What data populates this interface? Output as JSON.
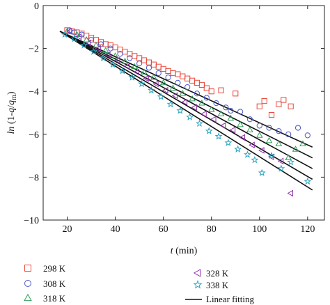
{
  "chart_data": {
    "type": "scatter",
    "title": "",
    "xlabel": {
      "italic": "t",
      "rest": " (min)"
    },
    "ylabel": {
      "italic": "ln",
      "pre": " (1-",
      "q1": "q",
      "mid": "/",
      "q2": "q",
      "sub": "m",
      "post": ")"
    },
    "xlim": [
      10,
      127
    ],
    "ylim": [
      -10,
      0
    ],
    "xticks": [
      20,
      40,
      60,
      80,
      100,
      120
    ],
    "yticks": [
      0,
      -2,
      -4,
      -6,
      -8,
      -10
    ],
    "grid": false,
    "legend_position": "bottom",
    "fit_label": "Linear fitting",
    "series": [
      {
        "name": "298 K",
        "marker": "square",
        "color": "#e8483c",
        "fit": {
          "x0": 17,
          "y0": -1.2,
          "x1": 122,
          "y1": -6.6
        },
        "points": [
          [
            20,
            -1.15
          ],
          [
            22,
            -1.2
          ],
          [
            24,
            -1.25
          ],
          [
            26,
            -1.3
          ],
          [
            28,
            -1.4
          ],
          [
            30,
            -1.5
          ],
          [
            32,
            -1.6
          ],
          [
            34,
            -1.7
          ],
          [
            36,
            -1.8
          ],
          [
            38,
            -1.85
          ],
          [
            40,
            -1.95
          ],
          [
            42,
            -2.05
          ],
          [
            44,
            -2.15
          ],
          [
            46,
            -2.25
          ],
          [
            48,
            -2.35
          ],
          [
            50,
            -2.45
          ],
          [
            52,
            -2.55
          ],
          [
            54,
            -2.65
          ],
          [
            56,
            -2.75
          ],
          [
            58,
            -2.85
          ],
          [
            60,
            -2.95
          ],
          [
            62,
            -3.05
          ],
          [
            64,
            -3.15
          ],
          [
            66,
            -3.2
          ],
          [
            68,
            -3.3
          ],
          [
            70,
            -3.4
          ],
          [
            72,
            -3.5
          ],
          [
            74,
            -3.6
          ],
          [
            76,
            -3.7
          ],
          [
            78,
            -3.85
          ],
          [
            80,
            -4.0
          ],
          [
            84,
            -3.95
          ],
          [
            90,
            -4.1
          ],
          [
            100,
            -4.7
          ],
          [
            102,
            -4.45
          ],
          [
            105,
            -5.1
          ],
          [
            108,
            -4.6
          ],
          [
            110,
            -4.4
          ],
          [
            113,
            -4.7
          ]
        ]
      },
      {
        "name": "308 K",
        "marker": "circle",
        "color": "#4a57c8",
        "fit": {
          "x0": 17,
          "y0": -1.2,
          "x1": 122,
          "y1": -7.1
        },
        "points": [
          [
            21,
            -1.15
          ],
          [
            23,
            -1.25
          ],
          [
            26,
            -1.35
          ],
          [
            30,
            -1.6
          ],
          [
            34,
            -1.8
          ],
          [
            38,
            -2.0
          ],
          [
            42,
            -2.25
          ],
          [
            46,
            -2.45
          ],
          [
            50,
            -2.7
          ],
          [
            54,
            -2.9
          ],
          [
            58,
            -3.15
          ],
          [
            62,
            -3.35
          ],
          [
            66,
            -3.6
          ],
          [
            70,
            -3.8
          ],
          [
            74,
            -4.1
          ],
          [
            78,
            -4.3
          ],
          [
            82,
            -4.55
          ],
          [
            86,
            -4.75
          ],
          [
            88,
            -4.9
          ],
          [
            92,
            -4.95
          ],
          [
            96,
            -5.3
          ],
          [
            100,
            -5.6
          ],
          [
            104,
            -5.7
          ],
          [
            108,
            -5.85
          ],
          [
            112,
            -6.0
          ],
          [
            116,
            -5.7
          ],
          [
            120,
            -6.05
          ]
        ]
      },
      {
        "name": "318 K",
        "marker": "triangle-up",
        "color": "#2e9e5b",
        "fit": {
          "x0": 17,
          "y0": -1.2,
          "x1": 122,
          "y1": -7.6
        },
        "points": [
          [
            20,
            -1.2
          ],
          [
            24,
            -1.35
          ],
          [
            28,
            -1.6
          ],
          [
            32,
            -1.85
          ],
          [
            36,
            -2.1
          ],
          [
            40,
            -2.35
          ],
          [
            44,
            -2.6
          ],
          [
            48,
            -2.85
          ],
          [
            52,
            -3.1
          ],
          [
            56,
            -3.35
          ],
          [
            60,
            -3.6
          ],
          [
            64,
            -3.85
          ],
          [
            68,
            -4.1
          ],
          [
            72,
            -4.35
          ],
          [
            76,
            -4.55
          ],
          [
            80,
            -4.85
          ],
          [
            84,
            -5.05
          ],
          [
            88,
            -5.25
          ],
          [
            92,
            -5.55
          ],
          [
            96,
            -5.8
          ],
          [
            100,
            -6.05
          ],
          [
            104,
            -6.3
          ],
          [
            108,
            -6.45
          ],
          [
            112,
            -7.1
          ],
          [
            115,
            -6.7
          ],
          [
            118,
            -6.45
          ]
        ]
      },
      {
        "name": "328 K",
        "marker": "triangle-left",
        "color": "#8e2fa8",
        "fit": {
          "x0": 17,
          "y0": -1.2,
          "x1": 122,
          "y1": -8.1
        },
        "points": [
          [
            21,
            -1.2
          ],
          [
            25,
            -1.45
          ],
          [
            29,
            -1.75
          ],
          [
            33,
            -2.0
          ],
          [
            37,
            -2.3
          ],
          [
            41,
            -2.55
          ],
          [
            45,
            -2.85
          ],
          [
            49,
            -3.1
          ],
          [
            53,
            -3.4
          ],
          [
            57,
            -3.65
          ],
          [
            61,
            -3.95
          ],
          [
            65,
            -4.2
          ],
          [
            69,
            -4.5
          ],
          [
            73,
            -4.75
          ],
          [
            77,
            -5.05
          ],
          [
            81,
            -5.3
          ],
          [
            85,
            -5.6
          ],
          [
            89,
            -5.8
          ],
          [
            93,
            -6.15
          ],
          [
            97,
            -6.5
          ],
          [
            101,
            -6.75
          ],
          [
            105,
            -7.05
          ],
          [
            109,
            -7.25
          ],
          [
            113,
            -8.75
          ]
        ]
      },
      {
        "name": "338 K",
        "marker": "star",
        "color": "#2aa5c0",
        "fit": {
          "x0": 17,
          "y0": -1.2,
          "x1": 122,
          "y1": -8.6
        },
        "points": [
          [
            19,
            -1.35
          ],
          [
            23,
            -1.55
          ],
          [
            27,
            -1.85
          ],
          [
            31,
            -2.15
          ],
          [
            35,
            -2.45
          ],
          [
            39,
            -2.75
          ],
          [
            43,
            -3.05
          ],
          [
            47,
            -3.35
          ],
          [
            51,
            -3.65
          ],
          [
            55,
            -3.95
          ],
          [
            59,
            -4.25
          ],
          [
            63,
            -4.6
          ],
          [
            67,
            -4.9
          ],
          [
            71,
            -5.2
          ],
          [
            75,
            -5.5
          ],
          [
            79,
            -5.85
          ],
          [
            83,
            -6.1
          ],
          [
            87,
            -6.4
          ],
          [
            91,
            -6.7
          ],
          [
            95,
            -6.95
          ],
          [
            98,
            -7.2
          ],
          [
            101,
            -7.8
          ],
          [
            105,
            -7.0
          ],
          [
            109,
            -7.6
          ],
          [
            113,
            -7.3
          ],
          [
            120,
            -8.2
          ]
        ]
      }
    ]
  }
}
